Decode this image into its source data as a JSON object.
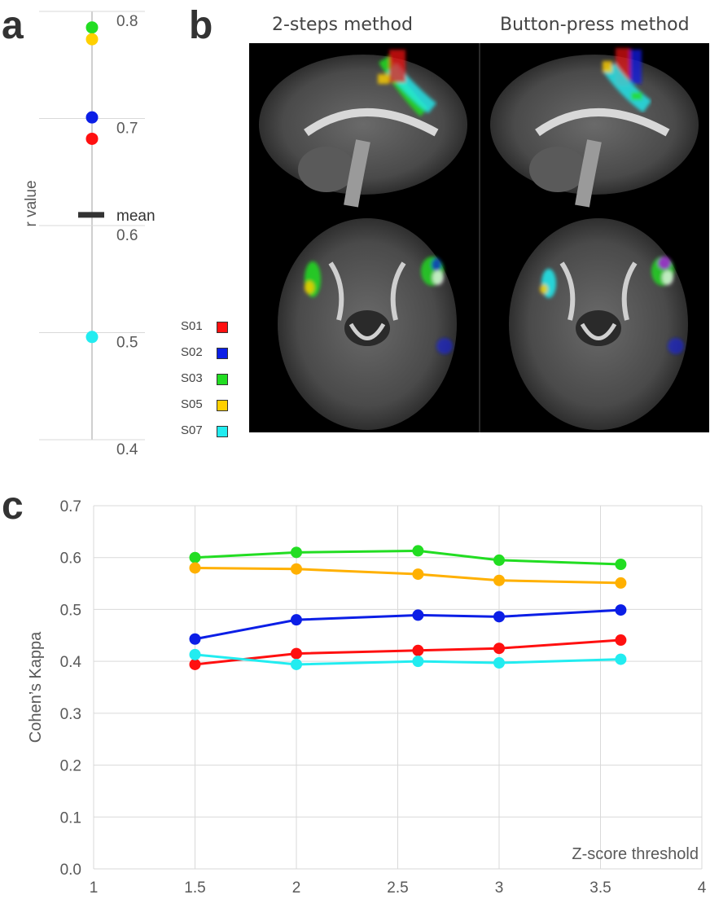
{
  "panels": {
    "a": "a",
    "b": "b",
    "c": "c"
  },
  "colors": {
    "S01": "#ff1010",
    "S02": "#0b1ee6",
    "S03": "#22dd22",
    "S05": "#ffd000",
    "S07": "#22ecf0",
    "line_S05": "#ffb000",
    "axis": "#bfbfbf",
    "grid": "#d9d9d9",
    "text": "#595959"
  },
  "chart_data": [
    {
      "type": "scatter",
      "panel": "a",
      "ylabel": "r  value",
      "ylim": [
        0.4,
        0.8
      ],
      "yticks": [
        "0.8",
        "0.7",
        "0.6",
        "0.5",
        "0.4"
      ],
      "points": [
        {
          "series": "S03",
          "y": 0.785
        },
        {
          "series": "S05",
          "y": 0.774
        },
        {
          "series": "S02",
          "y": 0.701
        },
        {
          "series": "S01",
          "y": 0.681
        },
        {
          "series": "S07",
          "y": 0.496
        }
      ],
      "mean": {
        "label": "mean",
        "y": 0.61
      }
    },
    {
      "type": "line",
      "panel": "c",
      "xlabel": "Z-score threshold",
      "ylabel": "Cohen’s Kappa",
      "xlim": [
        1,
        4
      ],
      "ylim": [
        0,
        0.7
      ],
      "xticks": [
        "1",
        "1.5",
        "2",
        "2.5",
        "3",
        "3.5",
        "4"
      ],
      "yticks": [
        "0.0",
        "0.1",
        "0.2",
        "0.3",
        "0.4",
        "0.5",
        "0.6",
        "0.7"
      ],
      "x": [
        1.5,
        2.0,
        2.6,
        3.0,
        3.6
      ],
      "series": [
        {
          "id": "S03",
          "values": [
            0.6,
            0.61,
            0.613,
            0.595,
            0.587
          ]
        },
        {
          "id": "S05",
          "values": [
            0.58,
            0.578,
            0.568,
            0.556,
            0.551
          ]
        },
        {
          "id": "S02",
          "values": [
            0.443,
            0.48,
            0.489,
            0.486,
            0.499
          ]
        },
        {
          "id": "S01",
          "values": [
            0.394,
            0.415,
            0.421,
            0.425,
            0.441
          ]
        },
        {
          "id": "S07",
          "values": [
            0.413,
            0.394,
            0.4,
            0.397,
            0.404
          ]
        }
      ],
      "grid": true
    }
  ],
  "panel_b": {
    "titles": [
      "2-steps method",
      "Button-press method"
    ],
    "legend": [
      {
        "label": "S01",
        "color_key": "S01"
      },
      {
        "label": "S02",
        "color_key": "S02"
      },
      {
        "label": "S03",
        "color_key": "S03"
      },
      {
        "label": "S05",
        "color_key": "S05"
      },
      {
        "label": "S07",
        "color_key": "S07"
      }
    ]
  }
}
